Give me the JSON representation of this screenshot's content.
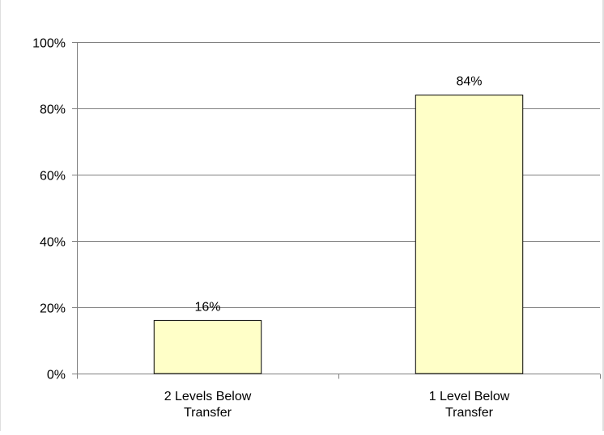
{
  "chart_data": {
    "type": "bar",
    "title": "",
    "xlabel": "",
    "ylabel": "",
    "categories": [
      "2 Levels Below Transfer",
      "1 Level Below Transfer"
    ],
    "category_lines": [
      [
        "2 Levels Below",
        "Transfer"
      ],
      [
        "1 Level Below",
        "Transfer"
      ]
    ],
    "values": [
      16,
      84
    ],
    "data_labels": [
      "16%",
      "84%"
    ],
    "ylim": [
      0,
      100
    ],
    "yticks": [
      0,
      20,
      40,
      60,
      80,
      100
    ],
    "ytick_labels": [
      "0%",
      "20%",
      "40%",
      "60%",
      "80%",
      "100%"
    ],
    "grid": true,
    "legend": "none",
    "colors": {
      "bar_fill": "#ffffc8",
      "bar_stroke": "#000000",
      "grid": "#808080",
      "axis": "#808080"
    }
  }
}
